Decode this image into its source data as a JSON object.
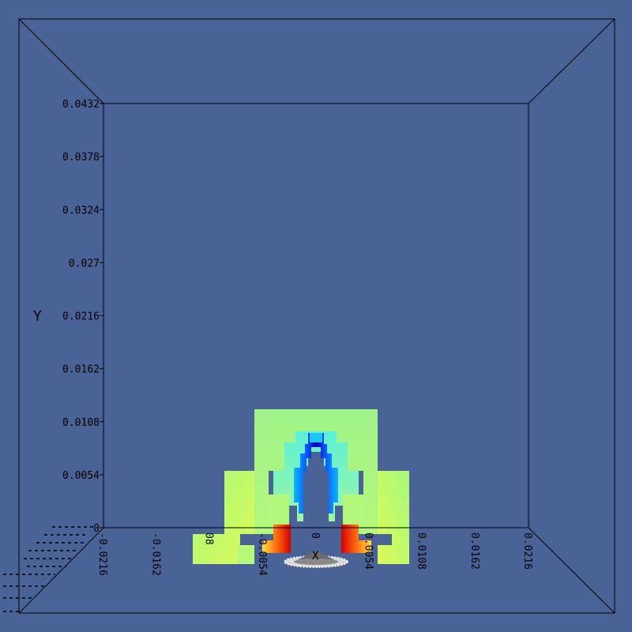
{
  "scene": {
    "background": "#4a6396",
    "axis_color": "#000000",
    "y_axis": {
      "title": "Y",
      "ticks": [
        "0",
        "0.0054",
        "0.0108",
        "0.0162",
        "0.0216",
        "0.027",
        "0.0324",
        "0.0378",
        "0.0432"
      ]
    },
    "x_axis": {
      "title": "X",
      "ticks": [
        "-0.0216",
        "-0.0162",
        "08",
        "-0.0054",
        "0",
        "0.0054",
        "0.0108",
        "0.0162",
        "0.0216"
      ]
    },
    "colormap": [
      "#0000c8",
      "#0a3fff",
      "#1fb8ff",
      "#5fffd6",
      "#b6ff78",
      "#ffff34",
      "#ff8a10",
      "#e00000"
    ],
    "icons": [
      "emitter-cone-icon"
    ]
  }
}
